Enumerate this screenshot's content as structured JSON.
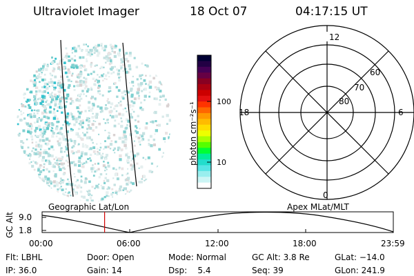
{
  "header": {
    "instrument": "Ultraviolet Imager",
    "date": "18 Oct 07",
    "time": "04:17:15 UT"
  },
  "globe": {
    "label": "Geographic Lat/Lon"
  },
  "colorbar": {
    "unit_label": "photon cm⁻²s⁻¹",
    "ticks": [
      "100",
      "10"
    ],
    "colors": [
      "#000033",
      "#220044",
      "#440055",
      "#660044",
      "#880022",
      "#aa0011",
      "#cc0000",
      "#e31010",
      "#ff3300",
      "#ff6600",
      "#ff9900",
      "#ffbb00",
      "#ffdd00",
      "#eeff00",
      "#aaff00",
      "#55ff00",
      "#00ff33",
      "#00ee99",
      "#22ddcc",
      "#55e5e5",
      "#99eeee",
      "#ccf5f5",
      "#ffffff"
    ]
  },
  "polar": {
    "label": "Apex MLat/MLT",
    "mlt_labels": {
      "top": "12",
      "left": "18",
      "right": "6",
      "bottom": "0"
    },
    "lat_labels": [
      "60",
      "70",
      "80"
    ]
  },
  "timeline": {
    "y_axis_label": "GC Alt",
    "y_ticks": [
      "9.0",
      "1.8"
    ],
    "x_ticks": [
      "00:00",
      "06:00",
      "12:00",
      "18:00",
      "23:59"
    ],
    "current_time_fraction": 0.178
  },
  "status": {
    "flt": "Flt: LBHL",
    "ip": "IP: 36.0",
    "door": "Door: Open",
    "gain": "Gain: 14",
    "mode": "Mode: Normal",
    "dsp": "Dsp:    5.4",
    "gc_alt": "GC Alt: 3.8 Re",
    "seq": "Seq: 39",
    "glat": "GLat: −14.0",
    "glon": "GLon: 241.9"
  }
}
